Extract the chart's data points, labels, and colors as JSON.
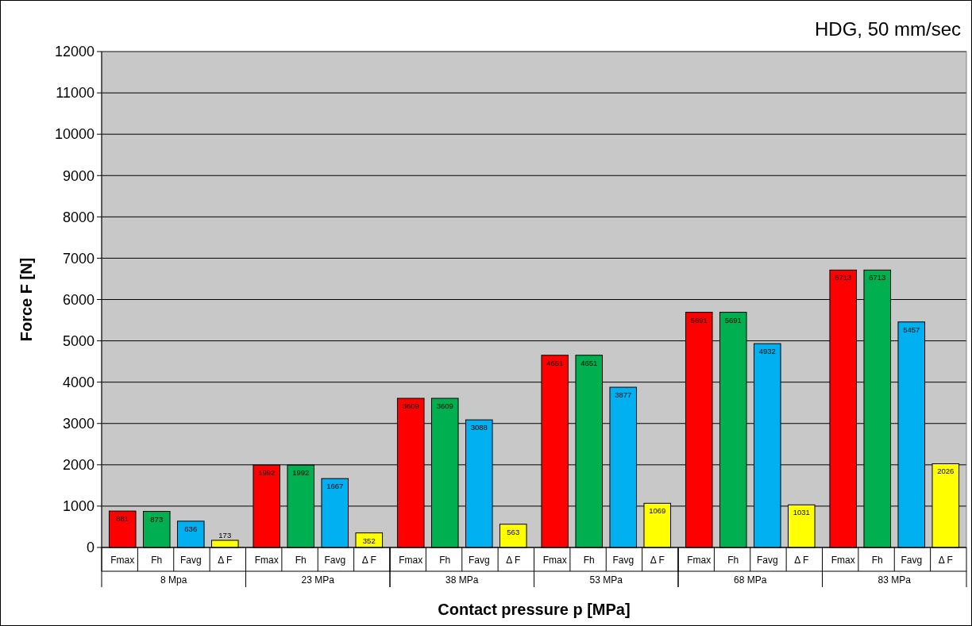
{
  "chart_data": {
    "type": "bar",
    "title": "HDG, 50 mm/sec",
    "xlabel": "Contact pressure p [MPa]",
    "ylabel": "Force F [N]",
    "categories": [
      "8 Mpa",
      "23 MPa",
      "38 MPa",
      "53 MPa",
      "68 MPa",
      "83 MPa"
    ],
    "series": [
      {
        "name": "Fmax",
        "color": "#ff0000",
        "values": [
          881,
          1992,
          3609,
          4651,
          5691,
          6713
        ]
      },
      {
        "name": "Fh",
        "color": "#00b050",
        "values": [
          873,
          1992,
          3609,
          4651,
          5691,
          6713
        ]
      },
      {
        "name": "Favg",
        "color": "#00b0f0",
        "values": [
          636,
          1667,
          3088,
          3877,
          4932,
          5457
        ]
      },
      {
        "name": "Δ F",
        "color": "#ffff00",
        "values": [
          173,
          352,
          563,
          1069,
          1031,
          2026
        ]
      }
    ],
    "ylim": [
      0,
      12000
    ],
    "yticks": [
      0,
      1000,
      2000,
      3000,
      4000,
      5000,
      6000,
      7000,
      8000,
      9000,
      10000,
      11000,
      12000
    ],
    "grid": "y",
    "data_labels": true
  }
}
